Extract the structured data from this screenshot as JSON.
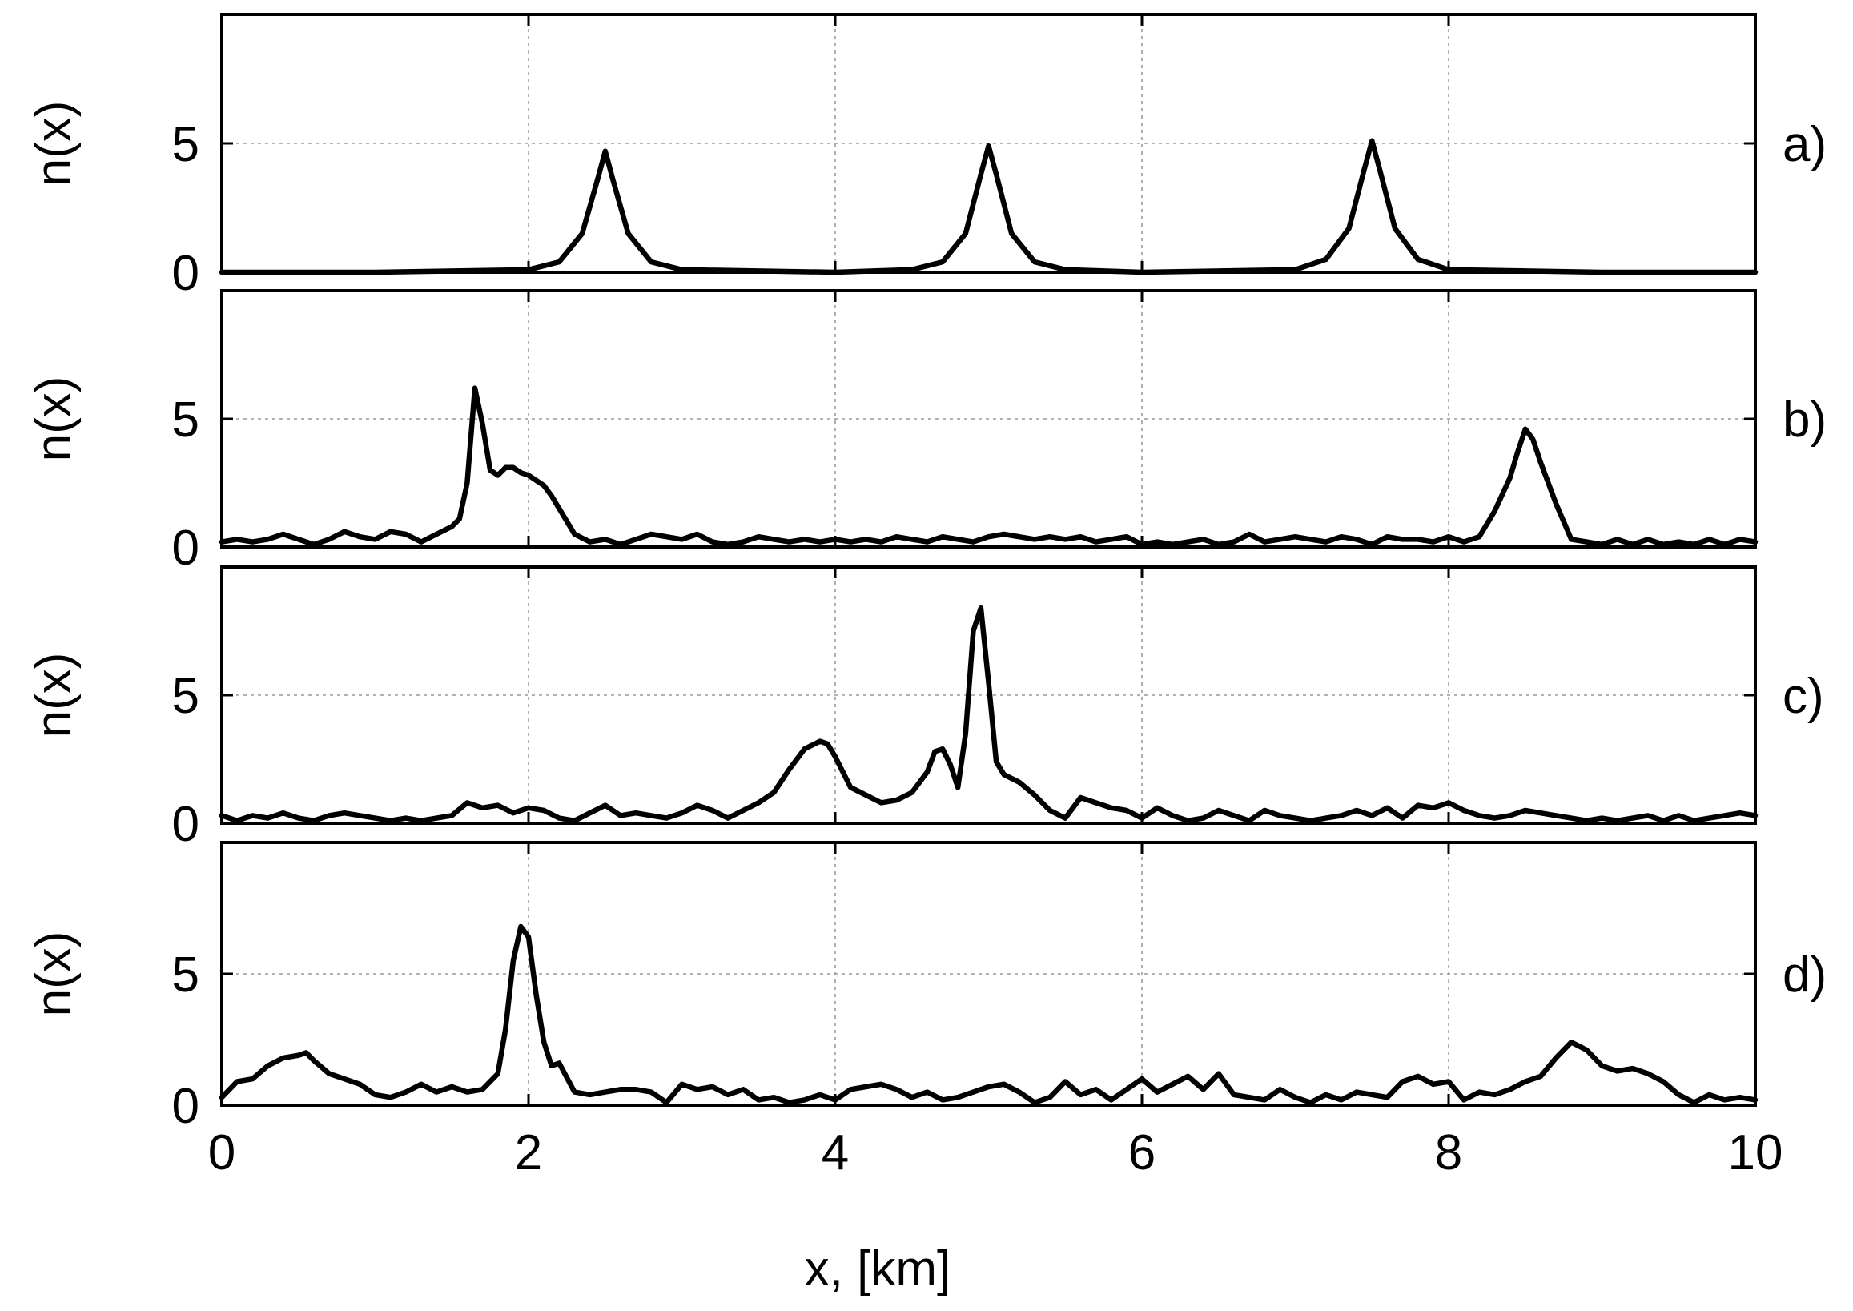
{
  "chart_data": {
    "type": "line",
    "xlabel": "x, [km]",
    "xlim": [
      0,
      10
    ],
    "xticks": [
      0,
      2,
      4,
      6,
      8,
      10
    ],
    "grid": true,
    "panels": [
      {
        "label": "a)",
        "ylabel": "n(x)",
        "ylim": [
          0,
          10
        ],
        "yticks": [
          0,
          5
        ],
        "peaks": [
          {
            "x": 2.5,
            "height": 4.7,
            "width": 0.09
          },
          {
            "x": 5.0,
            "height": 4.9,
            "width": 0.09
          },
          {
            "x": 7.5,
            "height": 5.1,
            "width": 0.1
          }
        ],
        "x": [
          0,
          1,
          2,
          2.2,
          2.35,
          2.45,
          2.5,
          2.55,
          2.65,
          2.8,
          3,
          4,
          4.5,
          4.7,
          4.85,
          4.95,
          5.0,
          5.05,
          5.15,
          5.3,
          5.5,
          6,
          7,
          7.2,
          7.35,
          7.45,
          7.5,
          7.55,
          7.65,
          7.8,
          8,
          9,
          10
        ],
        "y": [
          0,
          0,
          0.1,
          0.4,
          1.5,
          3.6,
          4.7,
          3.6,
          1.5,
          0.4,
          0.1,
          0,
          0.1,
          0.4,
          1.5,
          3.8,
          4.9,
          3.8,
          1.5,
          0.4,
          0.1,
          0,
          0.1,
          0.5,
          1.7,
          4.0,
          5.1,
          4.0,
          1.7,
          0.5,
          0.1,
          0,
          0
        ]
      },
      {
        "label": "b)",
        "ylabel": "n(x)",
        "ylim": [
          0,
          10
        ],
        "yticks": [
          0,
          5
        ],
        "x": [
          0,
          0.1,
          0.2,
          0.3,
          0.4,
          0.5,
          0.6,
          0.7,
          0.8,
          0.9,
          1.0,
          1.1,
          1.2,
          1.3,
          1.4,
          1.5,
          1.55,
          1.6,
          1.65,
          1.7,
          1.75,
          1.8,
          1.85,
          1.9,
          1.95,
          2.0,
          2.05,
          2.1,
          2.15,
          2.2,
          2.25,
          2.3,
          2.4,
          2.5,
          2.6,
          2.7,
          2.8,
          2.9,
          3.0,
          3.1,
          3.2,
          3.3,
          3.4,
          3.5,
          3.6,
          3.7,
          3.8,
          3.9,
          4.0,
          4.1,
          4.2,
          4.3,
          4.4,
          4.5,
          4.6,
          4.7,
          4.8,
          4.9,
          5.0,
          5.1,
          5.2,
          5.3,
          5.4,
          5.5,
          5.6,
          5.7,
          5.8,
          5.9,
          6.0,
          6.1,
          6.2,
          6.3,
          6.4,
          6.5,
          6.6,
          6.7,
          6.8,
          6.9,
          7.0,
          7.1,
          7.2,
          7.3,
          7.4,
          7.5,
          7.6,
          7.7,
          7.8,
          7.9,
          8.0,
          8.1,
          8.2,
          8.3,
          8.4,
          8.45,
          8.5,
          8.55,
          8.6,
          8.65,
          8.7,
          8.8,
          8.9,
          9.0,
          9.1,
          9.2,
          9.3,
          9.4,
          9.5,
          9.6,
          9.7,
          9.8,
          9.9,
          10.0
        ],
        "y": [
          0.2,
          0.3,
          0.2,
          0.3,
          0.5,
          0.3,
          0.1,
          0.3,
          0.6,
          0.4,
          0.3,
          0.6,
          0.5,
          0.2,
          0.5,
          0.8,
          1.1,
          2.5,
          6.2,
          4.8,
          3.0,
          2.8,
          3.1,
          3.1,
          2.9,
          2.8,
          2.6,
          2.4,
          2.0,
          1.5,
          1.0,
          0.5,
          0.2,
          0.3,
          0.1,
          0.3,
          0.5,
          0.4,
          0.3,
          0.5,
          0.2,
          0.1,
          0.2,
          0.4,
          0.3,
          0.2,
          0.3,
          0.2,
          0.3,
          0.2,
          0.3,
          0.2,
          0.4,
          0.3,
          0.2,
          0.4,
          0.3,
          0.2,
          0.4,
          0.5,
          0.4,
          0.3,
          0.4,
          0.3,
          0.4,
          0.2,
          0.3,
          0.4,
          0.1,
          0.2,
          0.1,
          0.2,
          0.3,
          0.1,
          0.2,
          0.5,
          0.2,
          0.3,
          0.4,
          0.3,
          0.2,
          0.4,
          0.3,
          0.1,
          0.4,
          0.3,
          0.3,
          0.2,
          0.4,
          0.2,
          0.4,
          1.4,
          2.7,
          3.7,
          4.6,
          4.2,
          3.3,
          2.5,
          1.7,
          0.3,
          0.2,
          0.1,
          0.3,
          0.1,
          0.3,
          0.1,
          0.2,
          0.1,
          0.3,
          0.1,
          0.3,
          0.2
        ]
      },
      {
        "label": "c)",
        "ylabel": "n(x)",
        "ylim": [
          0,
          10
        ],
        "yticks": [
          0,
          5
        ],
        "x": [
          0,
          0.1,
          0.2,
          0.3,
          0.4,
          0.5,
          0.6,
          0.7,
          0.8,
          0.9,
          1.0,
          1.1,
          1.2,
          1.3,
          1.4,
          1.5,
          1.6,
          1.7,
          1.8,
          1.9,
          2.0,
          2.1,
          2.2,
          2.3,
          2.4,
          2.5,
          2.6,
          2.7,
          2.8,
          2.9,
          3.0,
          3.1,
          3.2,
          3.3,
          3.4,
          3.5,
          3.6,
          3.7,
          3.8,
          3.9,
          3.95,
          4.0,
          4.05,
          4.1,
          4.2,
          4.3,
          4.4,
          4.5,
          4.6,
          4.65,
          4.7,
          4.75,
          4.8,
          4.85,
          4.9,
          4.95,
          5.0,
          5.05,
          5.1,
          5.2,
          5.3,
          5.4,
          5.5,
          5.6,
          5.7,
          5.8,
          5.9,
          6.0,
          6.1,
          6.2,
          6.3,
          6.4,
          6.5,
          6.6,
          6.7,
          6.8,
          6.9,
          7.0,
          7.1,
          7.2,
          7.3,
          7.4,
          7.5,
          7.6,
          7.7,
          7.8,
          7.9,
          8.0,
          8.1,
          8.2,
          8.3,
          8.4,
          8.5,
          8.6,
          8.7,
          8.8,
          8.9,
          9.0,
          9.1,
          9.2,
          9.3,
          9.4,
          9.5,
          9.6,
          9.7,
          9.8,
          9.9,
          10.0
        ],
        "y": [
          0.3,
          0.1,
          0.3,
          0.2,
          0.4,
          0.2,
          0.1,
          0.3,
          0.4,
          0.3,
          0.2,
          0.1,
          0.2,
          0.1,
          0.2,
          0.3,
          0.8,
          0.6,
          0.7,
          0.4,
          0.6,
          0.5,
          0.2,
          0.1,
          0.4,
          0.7,
          0.3,
          0.4,
          0.3,
          0.2,
          0.4,
          0.7,
          0.5,
          0.2,
          0.5,
          0.8,
          1.2,
          2.1,
          2.9,
          3.2,
          3.1,
          2.6,
          2.0,
          1.4,
          1.1,
          0.8,
          0.9,
          1.2,
          2.0,
          2.8,
          2.9,
          2.3,
          1.4,
          3.5,
          7.5,
          8.4,
          5.5,
          2.4,
          1.9,
          1.6,
          1.1,
          0.5,
          0.2,
          1.0,
          0.8,
          0.6,
          0.5,
          0.2,
          0.6,
          0.3,
          0.1,
          0.2,
          0.5,
          0.3,
          0.1,
          0.5,
          0.3,
          0.2,
          0.1,
          0.2,
          0.3,
          0.5,
          0.3,
          0.6,
          0.2,
          0.7,
          0.6,
          0.8,
          0.5,
          0.3,
          0.2,
          0.3,
          0.5,
          0.4,
          0.3,
          0.2,
          0.1,
          0.2,
          0.1,
          0.2,
          0.3,
          0.1,
          0.3,
          0.1,
          0.2,
          0.3,
          0.4,
          0.3
        ]
      },
      {
        "label": "d)",
        "ylabel": "n(x)",
        "ylim": [
          0,
          10
        ],
        "yticks": [
          0,
          5
        ],
        "x": [
          0,
          0.1,
          0.2,
          0.3,
          0.4,
          0.5,
          0.55,
          0.6,
          0.7,
          0.8,
          0.9,
          1.0,
          1.1,
          1.2,
          1.3,
          1.4,
          1.5,
          1.6,
          1.7,
          1.8,
          1.85,
          1.9,
          1.95,
          2.0,
          2.05,
          2.1,
          2.15,
          2.2,
          2.3,
          2.4,
          2.5,
          2.6,
          2.7,
          2.8,
          2.9,
          3.0,
          3.1,
          3.2,
          3.3,
          3.4,
          3.5,
          3.6,
          3.7,
          3.8,
          3.9,
          4.0,
          4.1,
          4.2,
          4.3,
          4.4,
          4.5,
          4.6,
          4.7,
          4.8,
          4.9,
          5.0,
          5.1,
          5.2,
          5.3,
          5.4,
          5.5,
          5.6,
          5.7,
          5.8,
          5.9,
          6.0,
          6.1,
          6.2,
          6.3,
          6.4,
          6.5,
          6.6,
          6.7,
          6.8,
          6.9,
          7.0,
          7.1,
          7.2,
          7.3,
          7.4,
          7.5,
          7.6,
          7.7,
          7.8,
          7.9,
          8.0,
          8.1,
          8.2,
          8.3,
          8.4,
          8.5,
          8.6,
          8.7,
          8.8,
          8.9,
          9.0,
          9.1,
          9.2,
          9.3,
          9.4,
          9.5,
          9.6,
          9.7,
          9.8,
          9.9,
          10.0
        ],
        "y": [
          0.3,
          0.9,
          1.0,
          1.5,
          1.8,
          1.9,
          2.0,
          1.7,
          1.2,
          1.0,
          0.8,
          0.4,
          0.3,
          0.5,
          0.8,
          0.5,
          0.7,
          0.5,
          0.6,
          1.2,
          2.9,
          5.5,
          6.8,
          6.4,
          4.2,
          2.4,
          1.5,
          1.6,
          0.5,
          0.4,
          0.5,
          0.6,
          0.6,
          0.5,
          0.1,
          0.8,
          0.6,
          0.7,
          0.4,
          0.6,
          0.2,
          0.3,
          0.1,
          0.2,
          0.4,
          0.2,
          0.6,
          0.7,
          0.8,
          0.6,
          0.3,
          0.5,
          0.2,
          0.3,
          0.5,
          0.7,
          0.8,
          0.5,
          0.1,
          0.3,
          0.9,
          0.4,
          0.6,
          0.2,
          0.6,
          1.0,
          0.5,
          0.8,
          1.1,
          0.6,
          1.2,
          0.4,
          0.3,
          0.2,
          0.6,
          0.3,
          0.1,
          0.4,
          0.2,
          0.5,
          0.4,
          0.3,
          0.9,
          1.1,
          0.8,
          0.9,
          0.2,
          0.5,
          0.4,
          0.6,
          0.9,
          1.1,
          1.8,
          2.4,
          2.1,
          1.5,
          1.3,
          1.4,
          1.2,
          0.9,
          0.4,
          0.1,
          0.4,
          0.2,
          0.3,
          0.2
        ]
      }
    ]
  }
}
